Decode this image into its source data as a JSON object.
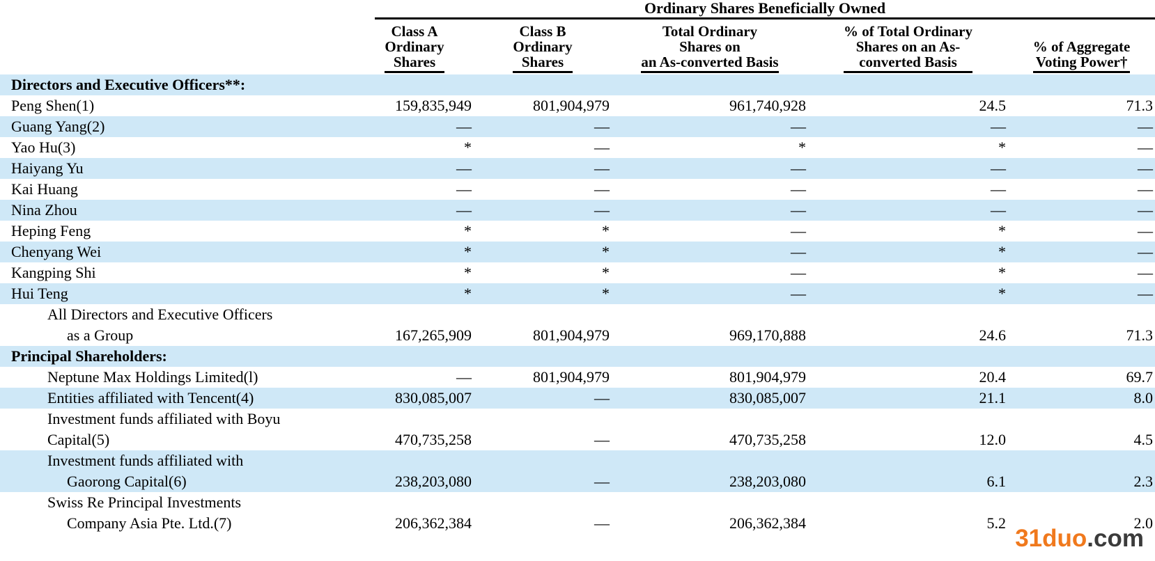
{
  "colors": {
    "row_stripe": "#cfe8f7",
    "watermark_brand": "#f0791d",
    "watermark_suffix": "#3b3b3b"
  },
  "table": {
    "title": "Ordinary Shares Beneficially Owned",
    "columns": [
      "Class A\nOrdinary\nShares",
      "Class B\nOrdinary\nShares",
      "Total Ordinary\nShares on\nan As-converted Basis",
      "% of Total Ordinary\nShares on an As-\nconverted Basis",
      "% of Aggregate\nVoting Power†"
    ],
    "rows": [
      {
        "kind": "section",
        "shade": true,
        "lines": [
          {
            "text": "Directors and Executive Officers**:",
            "indent": 0
          }
        ],
        "values": [
          "",
          "",
          "",
          "",
          ""
        ]
      },
      {
        "kind": "data",
        "shade": false,
        "lines": [
          {
            "text": "Peng Shen(1)",
            "indent": 0
          }
        ],
        "values": [
          "159,835,949",
          "801,904,979",
          "961,740,928",
          "24.5",
          "71.3"
        ]
      },
      {
        "kind": "data",
        "shade": true,
        "lines": [
          {
            "text": "Guang Yang(2)",
            "indent": 0
          }
        ],
        "values": [
          "—",
          "—",
          "—",
          "—",
          "—"
        ]
      },
      {
        "kind": "data",
        "shade": false,
        "lines": [
          {
            "text": "Yao Hu(3)",
            "indent": 0
          }
        ],
        "values": [
          "*",
          "—",
          "*",
          "*",
          "—"
        ]
      },
      {
        "kind": "data",
        "shade": true,
        "lines": [
          {
            "text": "Haiyang Yu",
            "indent": 0
          }
        ],
        "values": [
          "—",
          "—",
          "—",
          "—",
          "—"
        ]
      },
      {
        "kind": "data",
        "shade": false,
        "lines": [
          {
            "text": "Kai Huang",
            "indent": 0
          }
        ],
        "values": [
          "—",
          "—",
          "—",
          "—",
          "—"
        ]
      },
      {
        "kind": "data",
        "shade": true,
        "lines": [
          {
            "text": "Nina Zhou",
            "indent": 0
          }
        ],
        "values": [
          "—",
          "—",
          "—",
          "—",
          "—"
        ]
      },
      {
        "kind": "data",
        "shade": false,
        "lines": [
          {
            "text": "Heping Feng",
            "indent": 0
          }
        ],
        "values": [
          "*",
          "*",
          "—",
          "*",
          "—"
        ]
      },
      {
        "kind": "data",
        "shade": true,
        "lines": [
          {
            "text": "Chenyang Wei",
            "indent": 0
          }
        ],
        "values": [
          "*",
          "*",
          "—",
          "*",
          "—"
        ]
      },
      {
        "kind": "data",
        "shade": false,
        "lines": [
          {
            "text": "Kangping Shi",
            "indent": 0
          }
        ],
        "values": [
          "*",
          "*",
          "—",
          "*",
          "—"
        ]
      },
      {
        "kind": "data",
        "shade": true,
        "lines": [
          {
            "text": "Hui Teng",
            "indent": 0
          }
        ],
        "values": [
          "*",
          "*",
          "—",
          "*",
          "—"
        ]
      },
      {
        "kind": "data",
        "shade": false,
        "lines": [
          {
            "text": "All Directors and Executive Officers",
            "indent": 1
          },
          {
            "text": "as a Group",
            "indent": 2
          }
        ],
        "values": [
          "167,265,909",
          "801,904,979",
          "969,170,888",
          "24.6",
          "71.3"
        ]
      },
      {
        "kind": "section",
        "shade": true,
        "lines": [
          {
            "text": "Principal Shareholders:",
            "indent": 0
          }
        ],
        "values": [
          "",
          "",
          "",
          "",
          ""
        ]
      },
      {
        "kind": "data",
        "shade": false,
        "lines": [
          {
            "text": "Neptune Max Holdings Limited(l)",
            "indent": 1
          }
        ],
        "values": [
          "—",
          "801,904,979",
          "801,904,979",
          "20.4",
          "69.7"
        ]
      },
      {
        "kind": "data",
        "shade": true,
        "lines": [
          {
            "text": "Entities affiliated with Tencent(4)",
            "indent": 1
          }
        ],
        "values": [
          "830,085,007",
          "—",
          "830,085,007",
          "21.1",
          "8.0"
        ]
      },
      {
        "kind": "data",
        "shade": false,
        "lines": [
          {
            "text": "Investment funds affiliated with Boyu",
            "indent": 1
          },
          {
            "text": "Capital(5)",
            "indent": 1
          }
        ],
        "values": [
          "470,735,258",
          "—",
          "470,735,258",
          "12.0",
          "4.5"
        ]
      },
      {
        "kind": "data",
        "shade": true,
        "lines": [
          {
            "text": "Investment funds affiliated with",
            "indent": 1
          },
          {
            "text": "Gaorong Capital(6)",
            "indent": 2
          }
        ],
        "values": [
          "238,203,080",
          "—",
          "238,203,080",
          "6.1",
          "2.3"
        ]
      },
      {
        "kind": "data",
        "shade": false,
        "lines": [
          {
            "text": "Swiss Re Principal Investments",
            "indent": 1
          },
          {
            "text": "Company Asia Pte. Ltd.(7)",
            "indent": 2
          }
        ],
        "values": [
          "206,362,384",
          "—",
          "206,362,384",
          "5.2",
          "2.0"
        ]
      }
    ]
  },
  "watermark": {
    "brand": "31duo",
    "suffix": ".com"
  }
}
